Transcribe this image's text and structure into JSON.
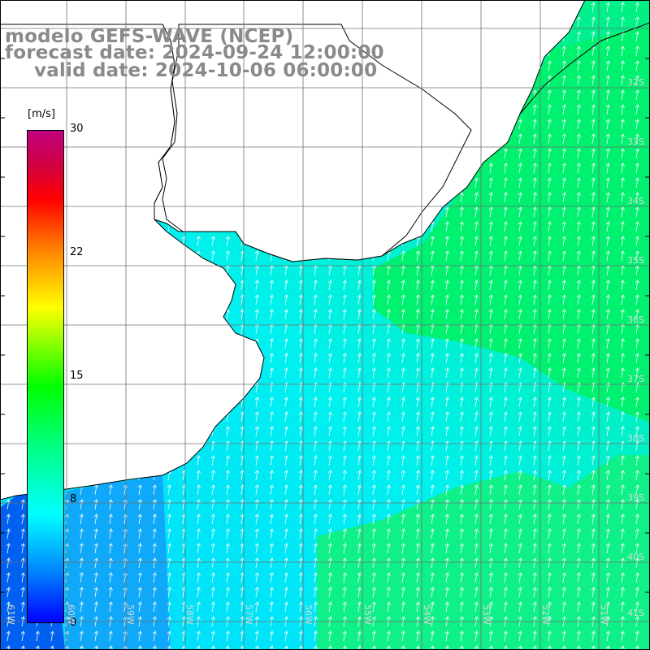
{
  "title": {
    "line1": "modelo GEFS-WAVE (NCEP)",
    "line2": "forecast date: 2024-09-24 12:00:00",
    "line3": "valid date: 2024-10-06 06:00:00"
  },
  "legend": {
    "unit": "[m/s]",
    "ticks": [
      {
        "label": "30",
        "value": 30
      },
      {
        "label": "22",
        "value": 22
      },
      {
        "label": "15",
        "value": 15
      },
      {
        "label": "8",
        "value": 8
      },
      {
        "label": "0",
        "value": 0
      }
    ],
    "colors": [
      "#0000ff",
      "#0080ff",
      "#00ffff",
      "#00ff80",
      "#00ff00",
      "#ffff00",
      "#ff8000",
      "#ff0000",
      "#c00080"
    ]
  },
  "lat_labels": [
    "32S",
    "33S",
    "34S",
    "35S",
    "36S",
    "37S",
    "38S",
    "39S",
    "40S",
    "41S"
  ],
  "lon_labels": [
    "61W",
    "60W",
    "59W",
    "58W",
    "57W",
    "56W",
    "55W",
    "54W",
    "53W",
    "52W",
    "51W"
  ],
  "colors": {
    "land": "#ffffff",
    "coast": "#000000",
    "grid": "#808080",
    "arrows": "#ffffff",
    "title": "#8a8a8a"
  }
}
